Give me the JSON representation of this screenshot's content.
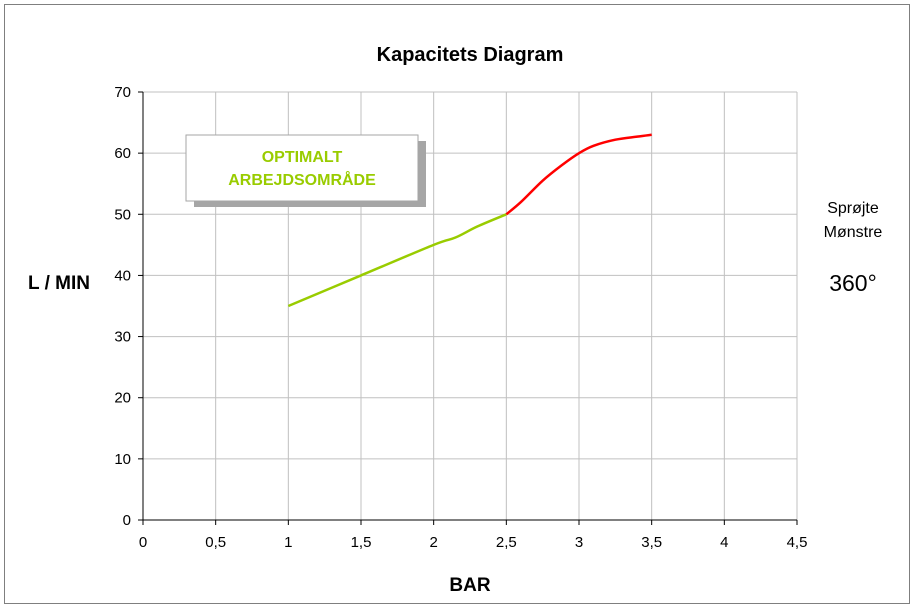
{
  "chart_data": {
    "type": "line",
    "title": "Kapacitets Diagram",
    "xlabel": "BAR",
    "ylabel": "L / MIN",
    "xlim": [
      0,
      4.5
    ],
    "ylim": [
      0,
      70
    ],
    "x_ticks": [
      "0",
      "0,5",
      "1",
      "1,5",
      "2",
      "2,5",
      "3",
      "3,5",
      "4",
      "4,5"
    ],
    "x_tick_values": [
      0,
      0.5,
      1,
      1.5,
      2,
      2.5,
      3,
      3.5,
      4,
      4.5
    ],
    "y_ticks": [
      "0",
      "10",
      "20",
      "30",
      "40",
      "50",
      "60",
      "70"
    ],
    "y_tick_values": [
      0,
      10,
      20,
      30,
      40,
      50,
      60,
      70
    ],
    "grid": true,
    "series": [
      {
        "color": "#99cc00",
        "points": [
          [
            1,
            35
          ],
          [
            1.5,
            40
          ],
          [
            2,
            45
          ],
          [
            2.15,
            46.2
          ],
          [
            2.3,
            48
          ],
          [
            2.5,
            50
          ]
        ]
      },
      {
        "color": "#ff0000",
        "points": [
          [
            2.5,
            50
          ],
          [
            2.6,
            52
          ],
          [
            2.75,
            55.5
          ],
          [
            2.88,
            58
          ],
          [
            3.0,
            60
          ],
          [
            3.1,
            61.2
          ],
          [
            3.25,
            62.2
          ],
          [
            3.4,
            62.7
          ],
          [
            3.5,
            63
          ]
        ]
      }
    ],
    "annotation_box": {
      "lines": [
        "OPTIMALT",
        "ARBEJDSOMRÅDE"
      ],
      "color": "#99cc00"
    },
    "side_label": {
      "lines": [
        "Sprøjte",
        "Mønstre"
      ],
      "value": "360°"
    }
  }
}
